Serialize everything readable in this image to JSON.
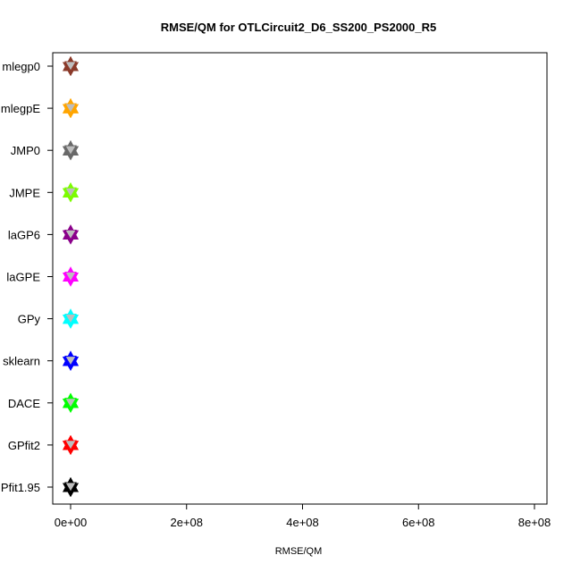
{
  "chart_data": {
    "type": "scatter",
    "title": "RMSE/QM for OTLCircuit2_D6_SS200_PS2000_R5",
    "xlabel": "RMSE/QM",
    "ylabel": "",
    "xlim": [
      -3000000,
      800000000
    ],
    "x_ticks": [
      0,
      200000000,
      400000000,
      600000000,
      800000000
    ],
    "x_tick_labels": [
      "0e+00",
      "2e+08",
      "4e+08",
      "6e+08",
      "8e+08"
    ],
    "categories": [
      "GPfit1.95",
      "GPfit2",
      "DACE",
      "sklearn",
      "GPy",
      "laGPE",
      "laGP6",
      "JMPE",
      "JMP0",
      "mlegpE",
      "mlegp0"
    ],
    "grid": false,
    "legend": "none",
    "series": [
      {
        "category": "GPfit1.95",
        "color": "#000000",
        "values": [
          10000,
          20000,
          15000,
          12000,
          18000
        ]
      },
      {
        "category": "GPfit2",
        "color": "#ff0000",
        "values": [
          10000,
          20000,
          15000,
          12000,
          18000
        ]
      },
      {
        "category": "DACE",
        "color": "#00ff00",
        "values": [
          10000,
          20000,
          15000,
          12000,
          18000
        ]
      },
      {
        "category": "sklearn",
        "color": "#0000ff",
        "values": [
          10000,
          20000,
          15000,
          12000,
          18000
        ]
      },
      {
        "category": "GPy",
        "color": "#00ffff",
        "values": [
          10000,
          20000,
          15000,
          12000,
          18000
        ]
      },
      {
        "category": "laGPE",
        "color": "#ff00ff",
        "values": [
          10000,
          20000,
          15000,
          12000,
          18000
        ]
      },
      {
        "category": "laGP6",
        "color": "#8b008b",
        "values": [
          10000,
          20000,
          15000,
          12000,
          18000
        ]
      },
      {
        "category": "JMPE",
        "color": "#7cfc00",
        "values": [
          10000,
          20000,
          15000,
          12000,
          18000
        ]
      },
      {
        "category": "JMP0",
        "color": "#696969",
        "values": [
          10000,
          20000,
          15000,
          12000,
          18000
        ]
      },
      {
        "category": "mlegpE",
        "color": "#ffa500",
        "values": [
          10000,
          20000,
          15000,
          12000,
          18000
        ]
      },
      {
        "category": "mlegp0",
        "color": "#8b3a2a",
        "values": [
          10000,
          20000,
          15000,
          12000,
          18000
        ]
      }
    ],
    "marker_fill": "#bebebe"
  }
}
